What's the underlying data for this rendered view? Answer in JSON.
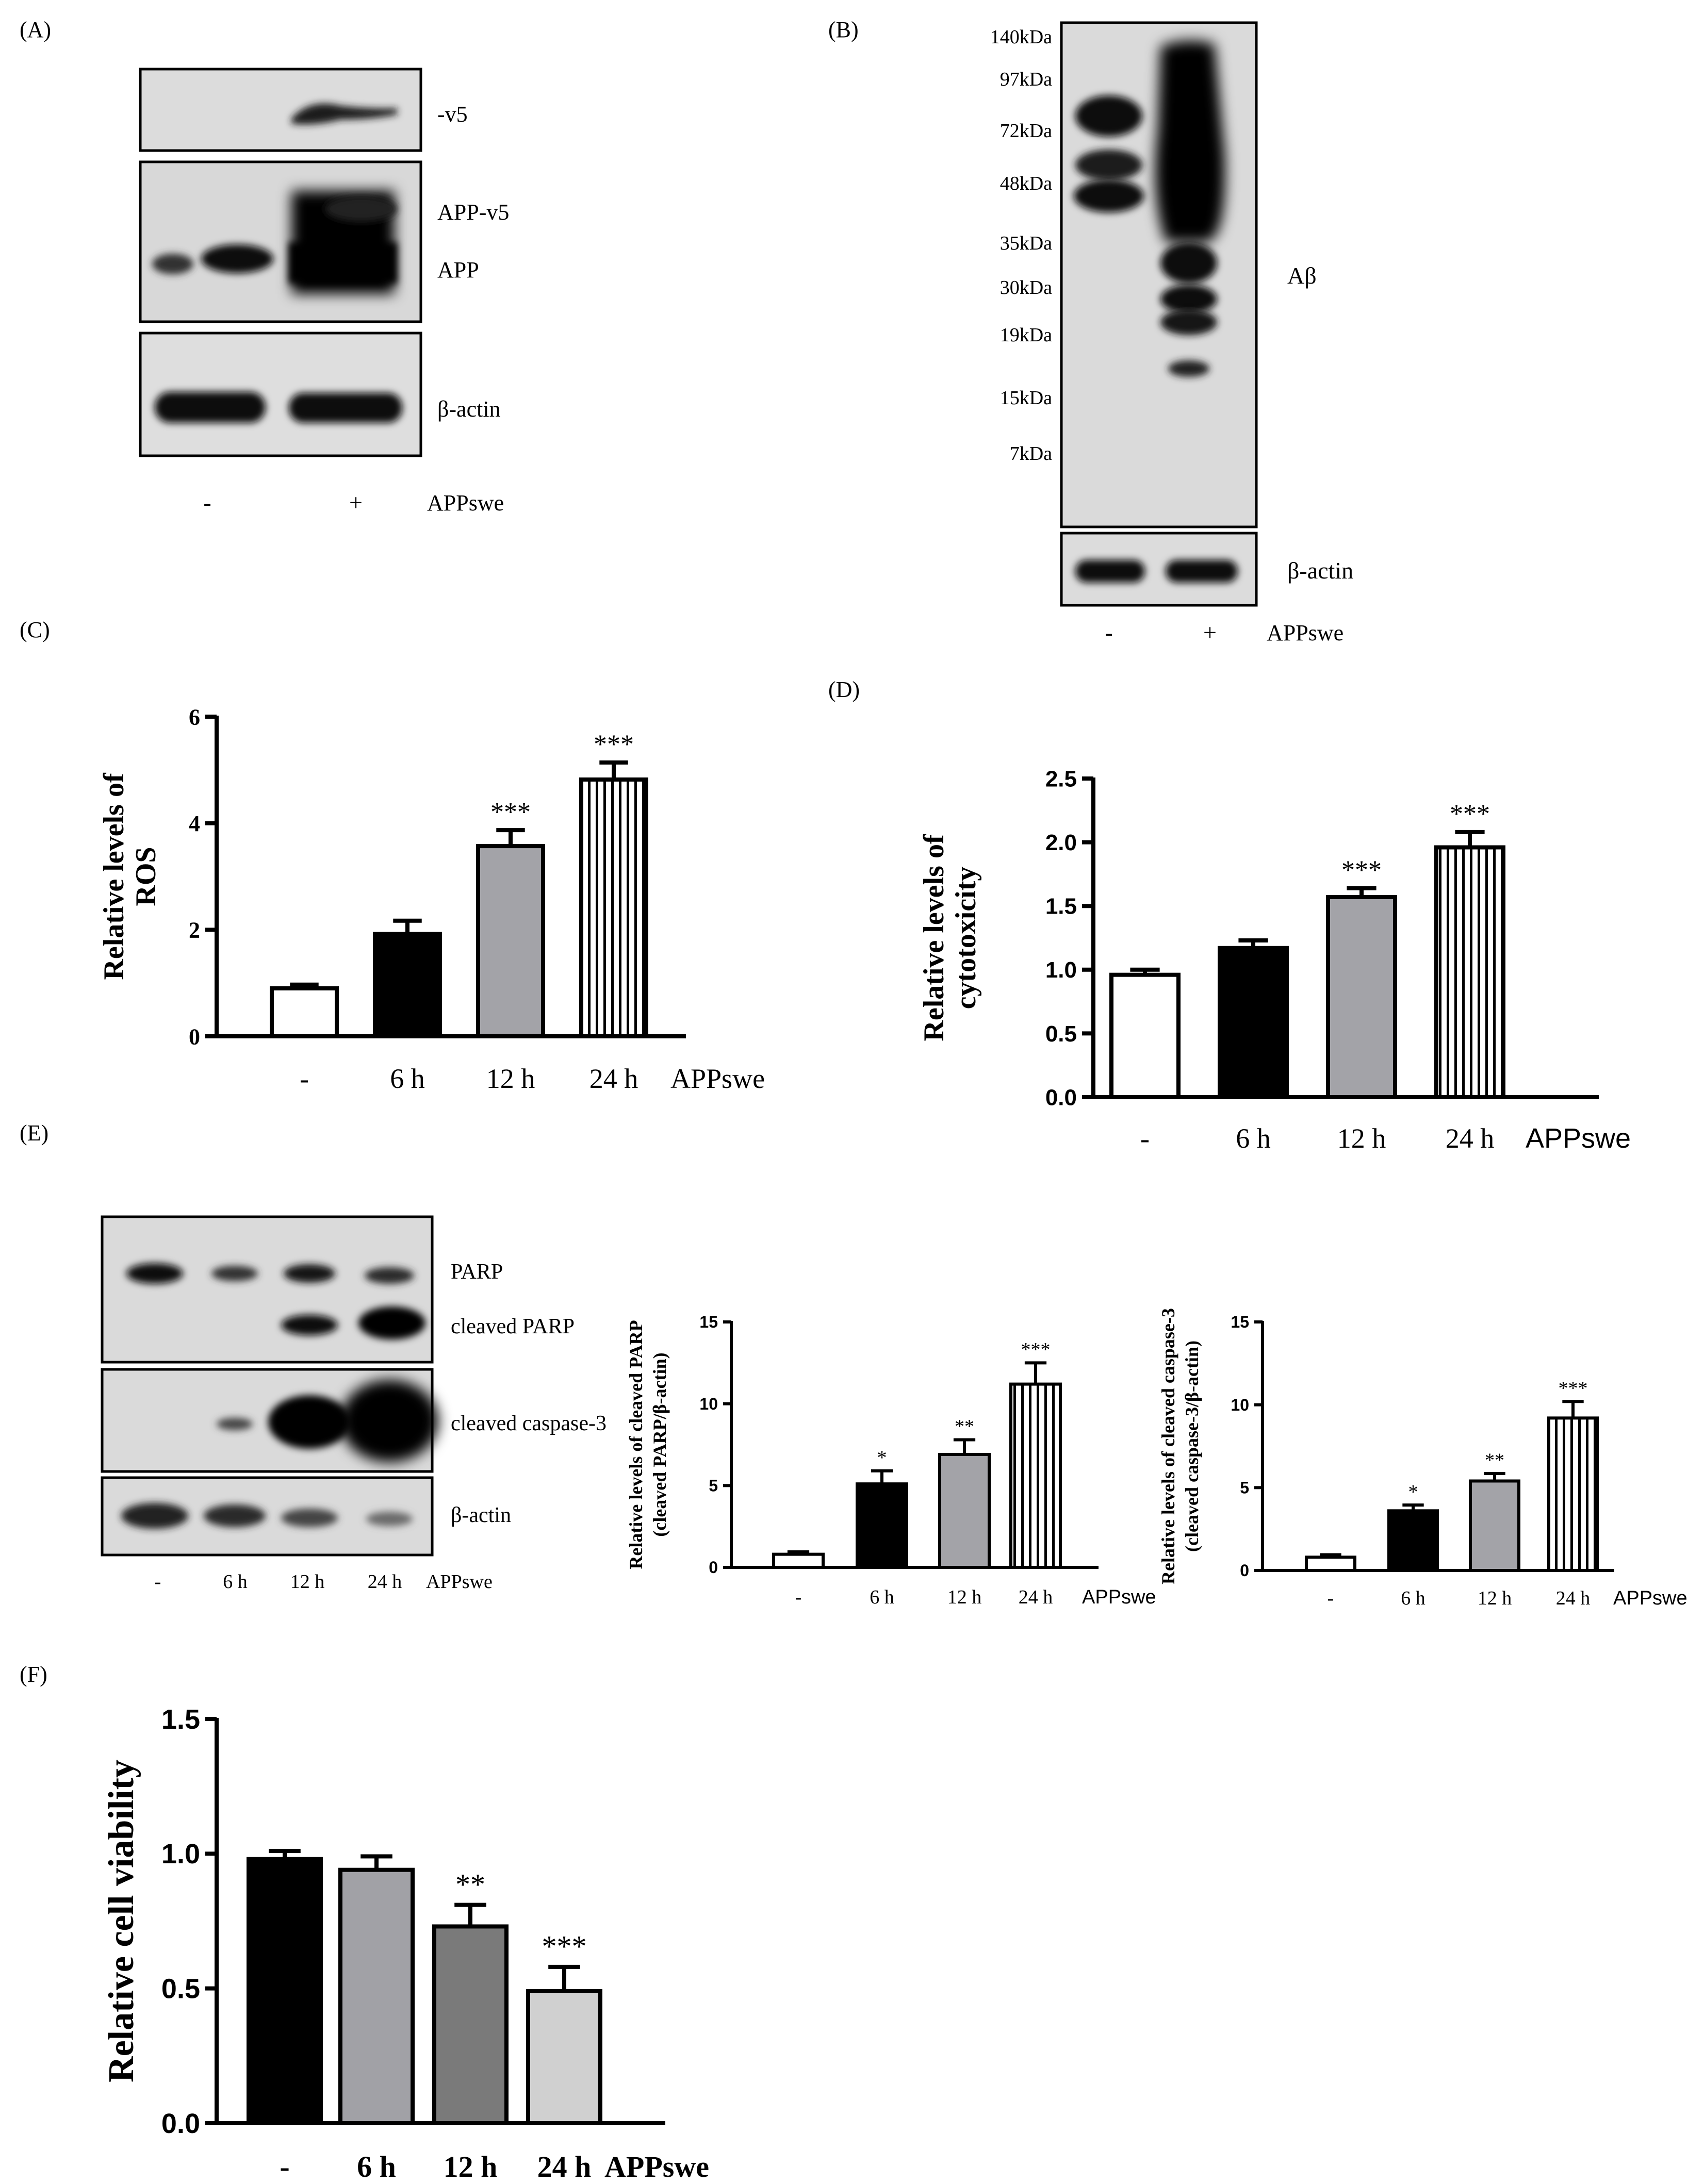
{
  "panels": {
    "A": {
      "letter": "(A)",
      "band_labels": [
        "-v5",
        "APP-v5",
        "APP",
        "β-actin"
      ],
      "lane_labels": [
        "-",
        "+"
      ],
      "condition_label": "APPswe"
    },
    "B": {
      "letter": "(B)",
      "markers": [
        "140kDa",
        "97kDa",
        "72kDa",
        "48kDa",
        "35kDa",
        "30kDa",
        "19kDa",
        "15kDa",
        "7kDa"
      ],
      "band_labels": [
        "Aβ",
        "β-actin"
      ],
      "lane_labels": [
        "-",
        "+"
      ],
      "condition_label": "APPswe"
    },
    "C": {
      "letter": "(C)"
    },
    "D": {
      "letter": "(D)"
    },
    "E": {
      "letter": "(E)",
      "band_labels": [
        "PARP",
        "cleaved PARP",
        "cleaved caspase-3",
        "β-actin"
      ],
      "lane_labels": [
        "-",
        "6 h",
        "12 h",
        "24 h"
      ],
      "condition_label": "APPswe"
    },
    "F": {
      "letter": "(F)"
    }
  },
  "chart_data": [
    {
      "id": "C",
      "type": "bar",
      "ylabel_lines": [
        "Relative levels of",
        "ROS"
      ],
      "categories": [
        "-",
        "6 h",
        "12 h",
        "24 h"
      ],
      "condition_label": "APPswe",
      "values": [
        0.9,
        1.92,
        3.57,
        4.82
      ],
      "errors": [
        0.07,
        0.25,
        0.3,
        0.32
      ],
      "significance": [
        "",
        "",
        "***",
        "***"
      ],
      "ylim": [
        0,
        6
      ],
      "yticks": [
        "0",
        "2",
        "4",
        "6"
      ]
    },
    {
      "id": "D",
      "type": "bar",
      "ylabel_lines": [
        "Relative levels of",
        "cytotoxicity"
      ],
      "categories": [
        "-",
        "6 h",
        "12 h",
        "24 h"
      ],
      "condition_label": "APPswe",
      "values": [
        0.96,
        1.17,
        1.57,
        1.96
      ],
      "errors": [
        0.04,
        0.06,
        0.07,
        0.12
      ],
      "significance": [
        "",
        "",
        "***",
        "***"
      ],
      "ylim": [
        0,
        2.5
      ],
      "yticks": [
        "0.0",
        "0.5",
        "1.0",
        "1.5",
        "2.0",
        "2.5"
      ]
    },
    {
      "id": "E1",
      "type": "bar",
      "ylabel_lines": [
        "Relative levels of cleaved PARP",
        "(cleaved PARP/β-actin)"
      ],
      "categories": [
        "-",
        "6 h",
        "12 h",
        "24 h"
      ],
      "condition_label": "APPswe",
      "values": [
        0.8,
        5.1,
        6.9,
        11.2
      ],
      "errors": [
        0.15,
        0.8,
        0.9,
        1.3
      ],
      "significance": [
        "",
        "*",
        "**",
        "***"
      ],
      "ylim": [
        0,
        15
      ],
      "yticks": [
        "0",
        "5",
        "10",
        "15"
      ]
    },
    {
      "id": "E2",
      "type": "bar",
      "ylabel_lines": [
        "Relative levels of cleaved caspase-3",
        "(cleaved caspase-3/β-actin)"
      ],
      "categories": [
        "-",
        "6 h",
        "12 h",
        "24 h"
      ],
      "condition_label": "APPswe",
      "values": [
        0.8,
        3.6,
        5.4,
        9.2
      ],
      "errors": [
        0.15,
        0.35,
        0.45,
        1.0
      ],
      "significance": [
        "",
        "*",
        "**",
        "***"
      ],
      "ylim": [
        0,
        15
      ],
      "yticks": [
        "0",
        "5",
        "10",
        "15"
      ]
    },
    {
      "id": "F",
      "type": "bar",
      "ylabel_lines": [
        "Relative cell viability"
      ],
      "categories": [
        "-",
        "6 h",
        "12 h",
        "24 h"
      ],
      "condition_label": "APPswe",
      "values": [
        0.98,
        0.94,
        0.73,
        0.49
      ],
      "errors": [
        0.03,
        0.05,
        0.08,
        0.09
      ],
      "significance": [
        "",
        "",
        "**",
        "***"
      ],
      "ylim": [
        0,
        1.5
      ],
      "yticks": [
        "0.0",
        "0.5",
        "1.0",
        "1.5"
      ]
    }
  ]
}
